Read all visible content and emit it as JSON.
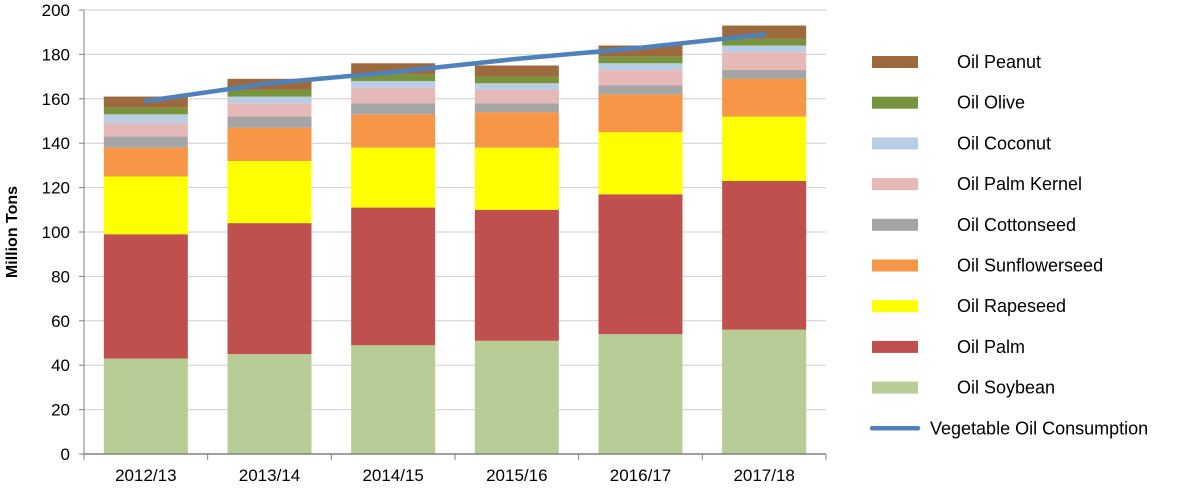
{
  "chart_data": {
    "type": "bar",
    "stacked": true,
    "categories": [
      "2012/13",
      "2013/14",
      "2014/15",
      "2015/16",
      "2016/17",
      "2017/18"
    ],
    "ylabel": "Million Tons",
    "xlabel": "",
    "ylim": [
      0,
      200
    ],
    "yticks": [
      0,
      20,
      40,
      60,
      80,
      100,
      120,
      140,
      160,
      180,
      200
    ],
    "grid": "horizontal",
    "legend_position": "right",
    "series": [
      {
        "name": "Oil Soybean",
        "color": "#b8cc96",
        "values": [
          43,
          45,
          49,
          51,
          54,
          56
        ]
      },
      {
        "name": "Oil Palm",
        "color": "#c0504d",
        "values": [
          56,
          59,
          62,
          59,
          63,
          67
        ]
      },
      {
        "name": "Oil Rapeseed",
        "color": "#ffff00",
        "values": [
          26,
          28,
          27,
          28,
          28,
          29
        ]
      },
      {
        "name": "Oil Sunflowerseed",
        "color": "#f79646",
        "values": [
          13,
          15,
          15,
          16,
          17,
          17
        ]
      },
      {
        "name": "Oil Cottonseed",
        "color": "#a5a5a5",
        "values": [
          5,
          5,
          5,
          4,
          4,
          4
        ]
      },
      {
        "name": "Oil Palm Kernel",
        "color": "#e6b9b8",
        "values": [
          6,
          6,
          7,
          6,
          7,
          8
        ]
      },
      {
        "name": "Oil Coconut",
        "color": "#b9cde5",
        "values": [
          4,
          3,
          3,
          3,
          3,
          3
        ]
      },
      {
        "name": "Oil Olive",
        "color": "#77933c",
        "values": [
          3,
          3,
          3,
          3,
          3,
          3
        ]
      },
      {
        "name": "Oil Peanut",
        "color": "#9c6a3c",
        "values": [
          5,
          5,
          5,
          5,
          5,
          6
        ]
      }
    ],
    "line_series": {
      "name": "Vegetable Oil Consumption",
      "color": "#4f81bd",
      "values": [
        159,
        167,
        172,
        178,
        183,
        189
      ]
    }
  }
}
